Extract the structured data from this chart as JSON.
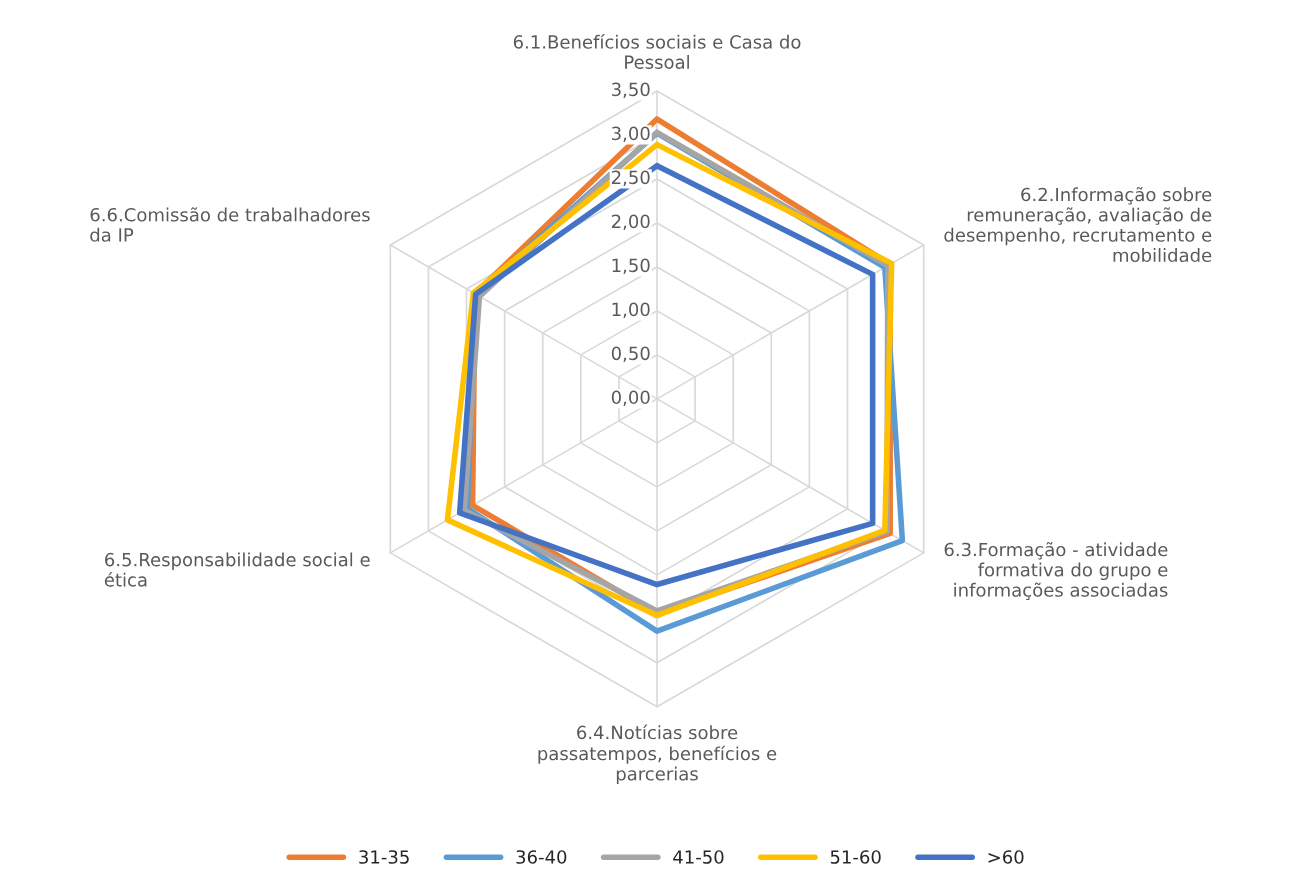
{
  "chart_data": {
    "type": "radar",
    "categories": [
      "6.1.Benefícios sociais e Casa do\nPessoal",
      "6.2.Informação sobre\nremuneração, avaliação de\ndesempenho, recrutamento e\nmobilidade",
      "6.3.Formação - atividade\nformativa do grupo e\ninformações associadas",
      "6.4.Notícias sobre\npassatempos, benefícios e\nparcerias",
      "6.5.Responsabilidade social e\nética",
      "6.6.Comissão de trabalhadores\nda IP"
    ],
    "series": [
      {
        "name": "31-35",
        "color": "#ed7d31",
        "values": [
          3.18,
          3.06,
          3.06,
          2.44,
          2.42,
          2.39
        ]
      },
      {
        "name": "36-40",
        "color": "#5b9bd5",
        "values": [
          3.02,
          2.99,
          3.22,
          2.64,
          2.49,
          2.38
        ]
      },
      {
        "name": "41-50",
        "color": "#a5a5a5",
        "values": [
          3.03,
          3.03,
          3.02,
          2.41,
          2.53,
          2.33
        ]
      },
      {
        "name": "51-60",
        "color": "#ffc000",
        "values": [
          2.89,
          3.08,
          2.99,
          2.46,
          2.75,
          2.41
        ]
      },
      {
        "name": ">60",
        "color": "#4472c4",
        "values": [
          2.65,
          2.83,
          2.83,
          2.11,
          2.59,
          2.38
        ]
      }
    ],
    "ylim": [
      0,
      3.5
    ],
    "yticks": [
      {
        "value": 0,
        "label": "0,00"
      },
      {
        "value": 0.5,
        "label": "0,50"
      },
      {
        "value": 1,
        "label": "1,00"
      },
      {
        "value": 1.5,
        "label": "1,50"
      },
      {
        "value": 2,
        "label": "2,00"
      },
      {
        "value": 2.5,
        "label": "2,50"
      },
      {
        "value": 3,
        "label": "3,00"
      },
      {
        "value": 3.5,
        "label": "3,50"
      }
    ],
    "grid": true,
    "legend": "bottom"
  }
}
